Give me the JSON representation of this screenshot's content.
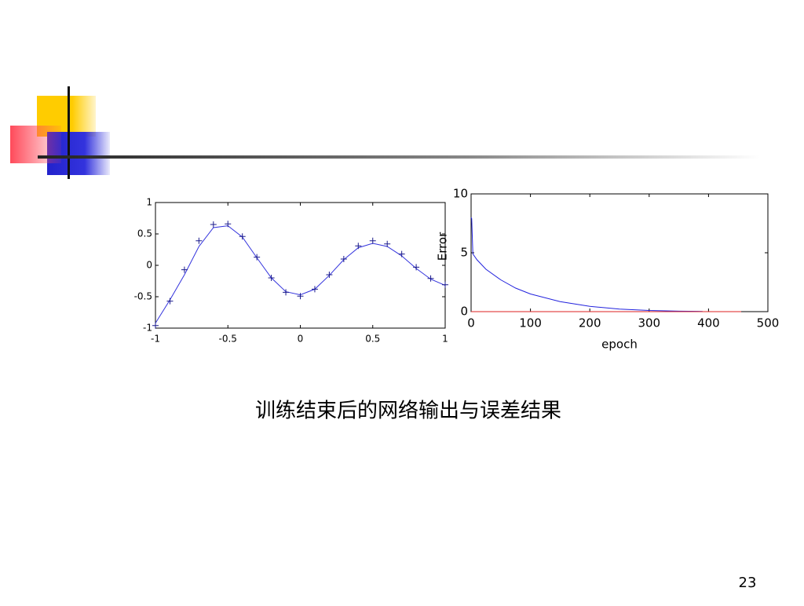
{
  "chart_data": [
    {
      "type": "line",
      "x": [
        -1,
        -0.9,
        -0.8,
        -0.7,
        -0.6,
        -0.5,
        -0.4,
        -0.3,
        -0.2,
        -0.1,
        0,
        0.1,
        0.2,
        0.3,
        0.4,
        0.5,
        0.6,
        0.7,
        0.8,
        0.9,
        1
      ],
      "series": [
        {
          "color": "#3333dd",
          "style": "line",
          "values": [
            -0.92,
            -0.55,
            -0.15,
            0.3,
            0.6,
            0.63,
            0.45,
            0.12,
            -0.2,
            -0.42,
            -0.47,
            -0.38,
            -0.16,
            0.09,
            0.28,
            0.35,
            0.3,
            0.15,
            -0.05,
            -0.22,
            -0.32
          ]
        },
        {
          "color": "#1a1a8c",
          "style": "plus",
          "values": [
            -0.96,
            -0.57,
            -0.07,
            0.39,
            0.65,
            0.66,
            0.46,
            0.13,
            -0.2,
            -0.43,
            -0.49,
            -0.38,
            -0.15,
            0.1,
            0.31,
            0.39,
            0.34,
            0.18,
            -0.03,
            -0.21,
            -0.31
          ]
        }
      ],
      "xlim": [
        -1,
        1
      ],
      "xticks": [
        -1,
        -0.5,
        0,
        0.5,
        1
      ],
      "ylim": [
        -1,
        1
      ],
      "yticks": [
        -1,
        -0.5,
        0,
        0.5,
        1
      ]
    },
    {
      "type": "line",
      "x_label": "epoch",
      "y_label": "Error",
      "series": [
        {
          "color": "#2222dd",
          "style": "line",
          "x": [
            0,
            1,
            3,
            10,
            25,
            50,
            75,
            100,
            150,
            200,
            250,
            300,
            350,
            390
          ],
          "values": [
            8,
            7.9,
            4.9,
            4.4,
            3.6,
            2.7,
            2.0,
            1.5,
            0.85,
            0.45,
            0.22,
            0.1,
            0.04,
            0.02
          ]
        },
        {
          "color": "#dd2222",
          "style": "line",
          "x": [
            0,
            455
          ],
          "values": [
            0,
            0
          ]
        }
      ],
      "xlim": [
        0,
        500
      ],
      "xticks": [
        0,
        100,
        200,
        300,
        400,
        500
      ],
      "ylim": [
        0,
        10
      ],
      "yticks": [
        0,
        5,
        10
      ]
    }
  ],
  "caption": "训练结束后的网络输出与误差结果",
  "page_number": "23"
}
